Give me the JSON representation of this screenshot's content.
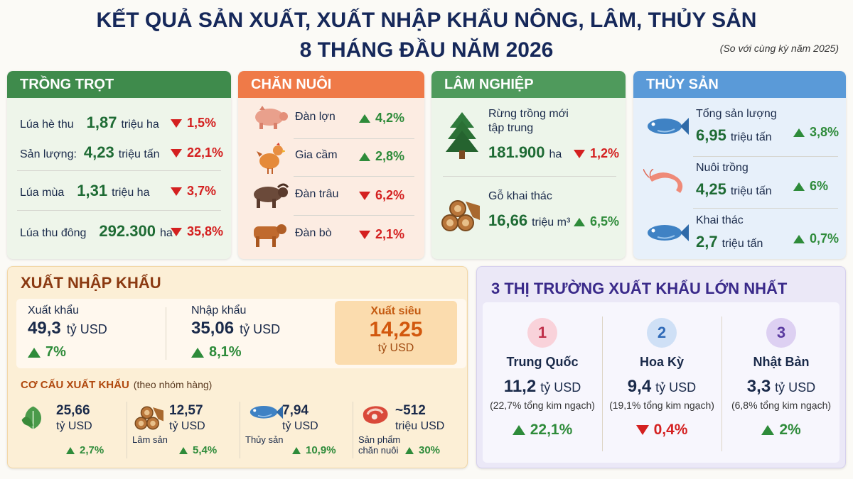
{
  "header": {
    "title": "KẾT QUẢ SẢN XUẤT, XUẤT NHẬP KHẨU NÔNG, LÂM, THỦY SẢN",
    "subtitle": "8 THÁNG ĐẦU NĂM 2026",
    "note": "(So với cùng kỳ năm 2025)"
  },
  "sections": [
    {
      "title": "TRỒNG TRỌT",
      "rows": [
        {
          "label": "Lúa hè thu",
          "value": "1,87",
          "unit": "triệu ha",
          "change": "1,5%",
          "trend": "down"
        },
        {
          "label": "Sản lượng:",
          "value": "4,23",
          "unit": "triệu tấn",
          "change": "22,1%",
          "trend": "down"
        },
        {
          "label": "Lúa mùa",
          "value": "1,31",
          "unit": "triệu ha",
          "change": "3,7%",
          "trend": "down"
        },
        {
          "label": "Lúa thu đông",
          "value": "292.300",
          "unit": "ha",
          "change": "35,8%",
          "trend": "down"
        }
      ]
    },
    {
      "title": "CHĂN NUÔI",
      "rows": [
        {
          "label": "Đàn lợn",
          "change": "4,2%",
          "trend": "up"
        },
        {
          "label": "Gia cầm",
          "change": "2,8%",
          "trend": "up"
        },
        {
          "label": "Đàn trâu",
          "change": "6,2%",
          "trend": "down"
        },
        {
          "label": "Đàn bò",
          "change": "2,1%",
          "trend": "down"
        }
      ]
    },
    {
      "title": "LÂM NGHIỆP",
      "rows": [
        {
          "label": [
            "Rừng trồng mới",
            "tập trung"
          ],
          "value": "181.900",
          "unit": "ha",
          "change": "1,2%",
          "trend": "down"
        },
        {
          "label": [
            "Gỗ khai thác"
          ],
          "value": "16,66",
          "unit": "triệu m³",
          "change": "6,5%",
          "trend": "up"
        }
      ]
    },
    {
      "title": "THỦY SẢN",
      "rows": [
        {
          "label": "Tổng sản lượng",
          "value": "6,95",
          "unit": "triệu tấn",
          "change": "3,8%",
          "trend": "up"
        },
        {
          "label": "Nuôi trồng",
          "value": "4,25",
          "unit": "triệu tấn",
          "change": "6%",
          "trend": "up"
        },
        {
          "label": "Khai thác",
          "value": "2,7",
          "unit": "triệu tấn",
          "change": "0,7%",
          "trend": "up"
        }
      ]
    }
  ],
  "trade": {
    "title": "XUẤT NHẬP KHẨU",
    "export": {
      "label": "Xuất khẩu",
      "value": "49,3",
      "unit": "tỷ USD",
      "change": "7%",
      "trend": "up"
    },
    "import": {
      "label": "Nhập khẩu",
      "value": "35,06",
      "unit": "tỷ USD",
      "change": "8,1%",
      "trend": "up"
    },
    "surplus": {
      "label": "Xuất siêu",
      "value": "14,25",
      "unit": "tỷ USD"
    },
    "structure": {
      "title": "CƠ CẤU XUẤT KHẨU",
      "subtitle": "(theo nhóm hàng)",
      "items": [
        {
          "value": "25,66",
          "unit": "tỷ USD",
          "change": "2,7%",
          "trend": "up"
        },
        {
          "label": "Lâm sản",
          "value": "12,57",
          "unit": "tỷ USD",
          "change": "5,4%",
          "trend": "up"
        },
        {
          "label": "Thủy sản",
          "value": "7,94",
          "unit": "tỷ USD",
          "change": "10,9%",
          "trend": "up"
        },
        {
          "label": "Sản phẩm chăn nuôi",
          "value": "~512",
          "unit": "triệu USD",
          "change": "30%",
          "trend": "up"
        }
      ]
    }
  },
  "markets": {
    "title": "3 THỊ TRƯỜNG XUẤT KHẨU LỚN NHẤT",
    "items": [
      {
        "rank": "1",
        "name": "Trung Quốc",
        "value": "11,2",
        "unit": "tỷ USD",
        "share": "(22,7% tổng kim ngạch)",
        "change": "22,1%",
        "trend": "up"
      },
      {
        "rank": "2",
        "name": "Hoa Kỳ",
        "value": "9,4",
        "unit": "tỷ USD",
        "share": "(19,1% tổng kim ngạch)",
        "change": "0,4%",
        "trend": "down"
      },
      {
        "rank": "3",
        "name": "Nhật Bản",
        "value": "3,3",
        "unit": "tỷ USD",
        "share": "(6,8% tổng kim ngạch)",
        "change": "2%",
        "trend": "up"
      }
    ]
  }
}
